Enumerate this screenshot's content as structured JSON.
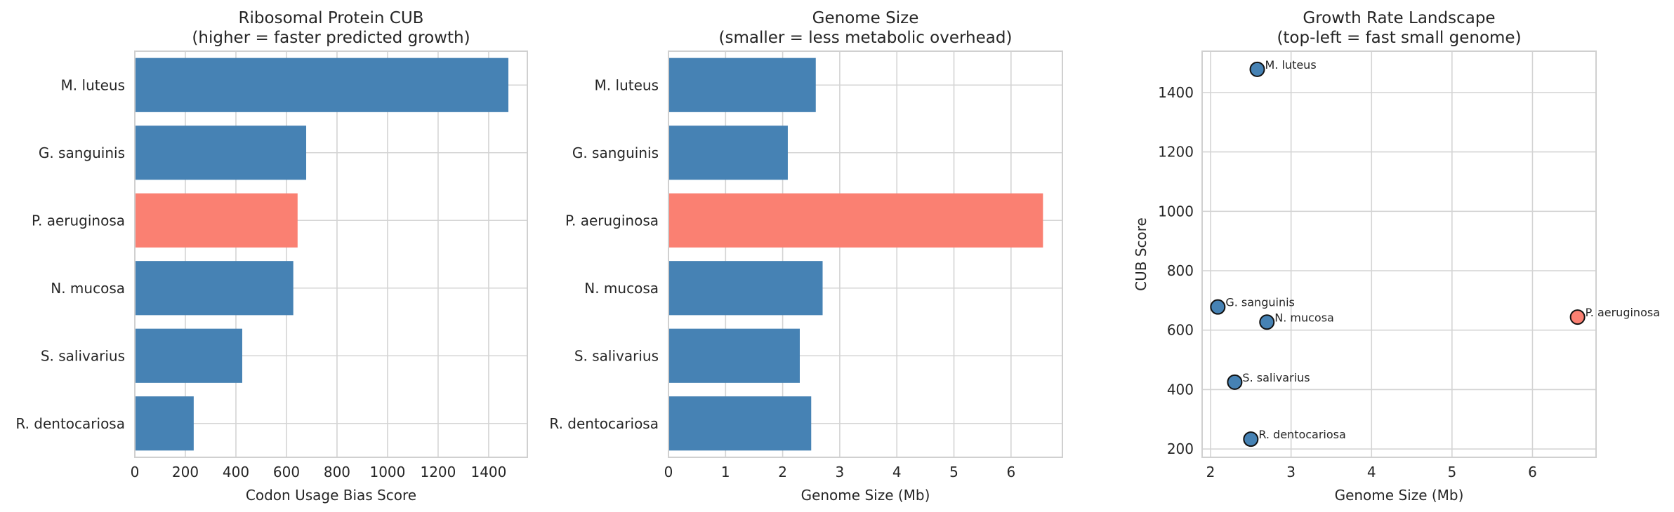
{
  "colors": {
    "default": "#4682b4",
    "highlight": "#fa8072",
    "grid": "#d4d4d4",
    "text": "#262626"
  },
  "chart_data": [
    {
      "type": "bar",
      "orientation": "horizontal",
      "title": "Ribosomal Protein CUB",
      "subtitle": "(higher = faster predicted growth)",
      "xlabel": "Codon Usage Bias Score",
      "ylabel": "",
      "categories": [
        "M. luteus",
        "G. sanguinis",
        "P. aeruginosa",
        "N. mucosa",
        "S. salivarius",
        "R. dentocariosa"
      ],
      "values": [
        1478,
        678,
        644,
        627,
        425,
        233
      ],
      "highlight": "P. aeruginosa",
      "xticks": [
        0,
        200,
        400,
        600,
        800,
        1000,
        1200,
        1400
      ],
      "xlim": [
        0,
        1553
      ],
      "grid": true
    },
    {
      "type": "bar",
      "orientation": "horizontal",
      "title": "Genome Size",
      "subtitle": "(smaller = less metabolic overhead)",
      "xlabel": "Genome Size (Mb)",
      "ylabel": "",
      "categories": [
        "M. luteus",
        "G. sanguinis",
        "P. aeruginosa",
        "N. mucosa",
        "S. salivarius",
        "R. dentocariosa"
      ],
      "values": [
        2.58,
        2.09,
        6.56,
        2.7,
        2.3,
        2.5
      ],
      "highlight": "P. aeruginosa",
      "xticks": [
        0,
        1,
        2,
        3,
        4,
        5,
        6
      ],
      "xlim": [
        0,
        6.9
      ],
      "grid": true
    },
    {
      "type": "scatter",
      "title": "Growth Rate Landscape",
      "subtitle": "(top-left = fast small genome)",
      "xlabel": "Genome Size (Mb)",
      "ylabel": "CUB Score",
      "points": [
        {
          "label": "M. luteus",
          "x": 2.58,
          "y": 1478
        },
        {
          "label": "G. sanguinis",
          "x": 2.09,
          "y": 678
        },
        {
          "label": "P. aeruginosa",
          "x": 6.56,
          "y": 644
        },
        {
          "label": "N. mucosa",
          "x": 2.7,
          "y": 627
        },
        {
          "label": "S. salivarius",
          "x": 2.3,
          "y": 425
        },
        {
          "label": "R. dentocariosa",
          "x": 2.5,
          "y": 233
        }
      ],
      "highlight": "P. aeruginosa",
      "xticks": [
        2,
        3,
        4,
        5,
        6
      ],
      "yticks": [
        200,
        400,
        600,
        800,
        1000,
        1200,
        1400
      ],
      "xlim": [
        1.895,
        6.79
      ],
      "ylim": [
        172,
        1539
      ],
      "grid": true
    }
  ]
}
